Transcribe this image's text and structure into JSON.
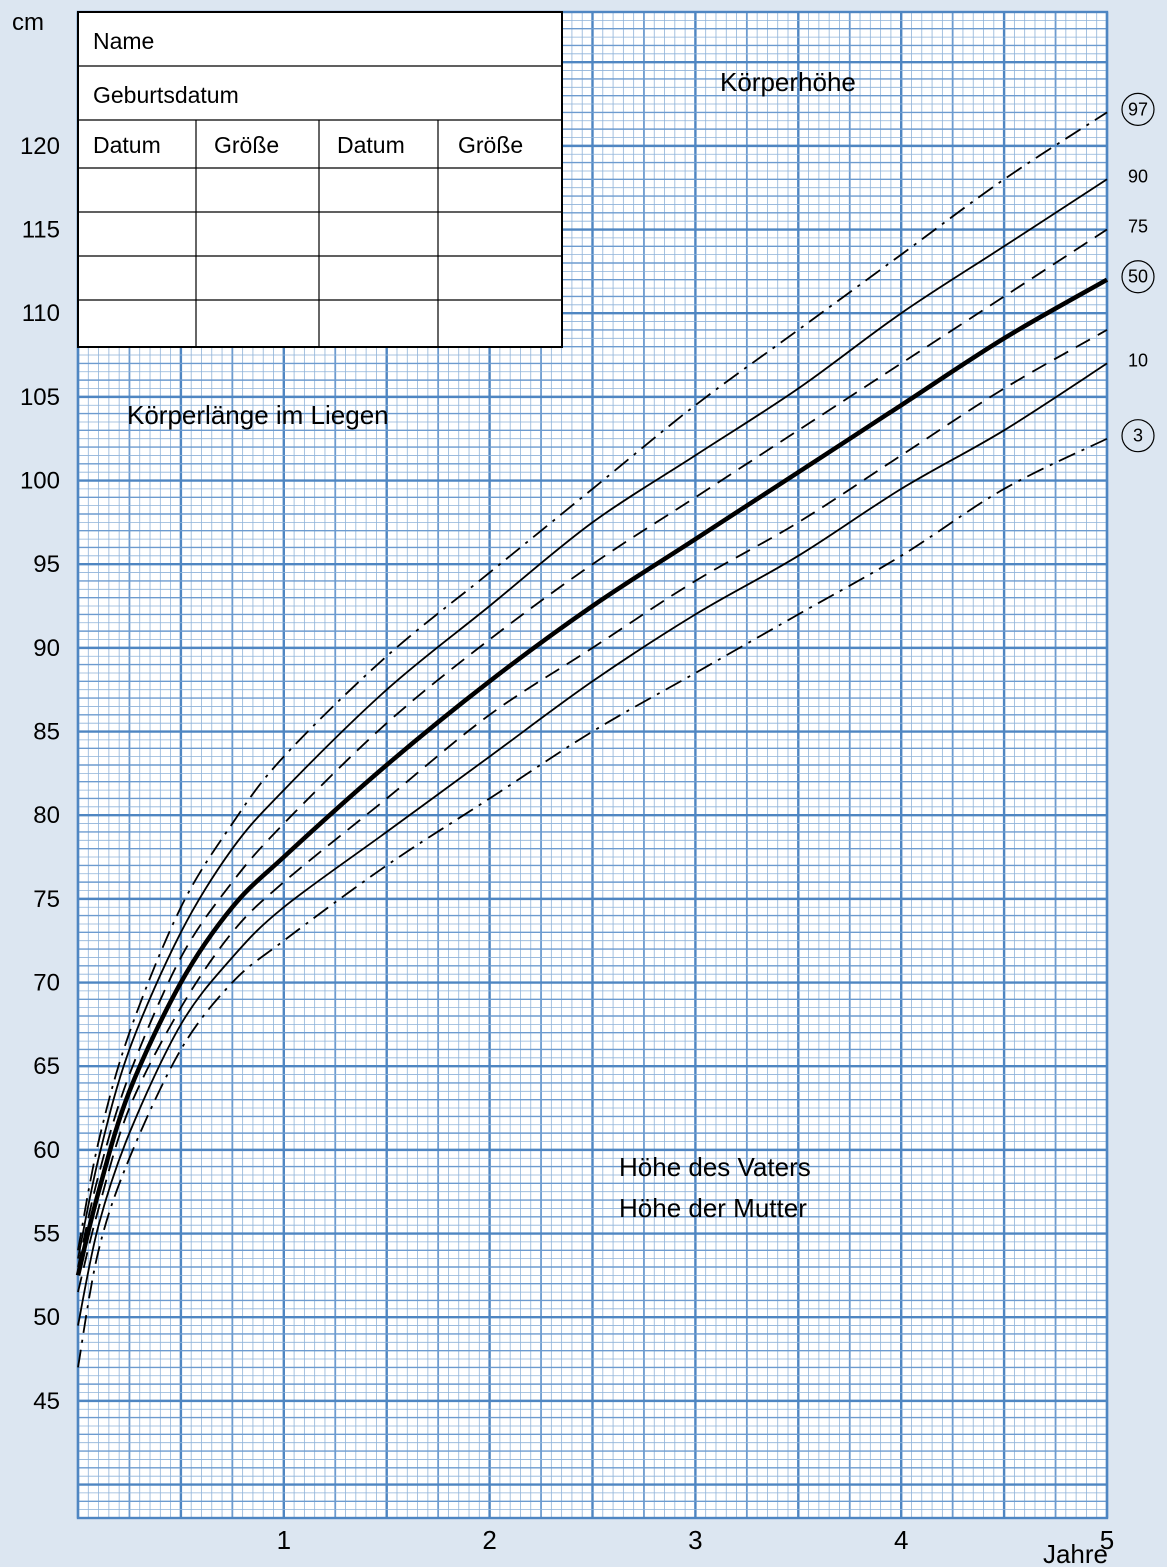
{
  "chart_data": {
    "type": "line",
    "ylabel": "cm",
    "xlabel": "Jahre",
    "xlim": [
      0,
      5
    ],
    "ylim": [
      38,
      128
    ],
    "y_ticks": [
      45,
      50,
      55,
      60,
      65,
      70,
      75,
      80,
      85,
      90,
      95,
      100,
      105,
      110,
      115,
      120
    ],
    "x_ticks": [
      1,
      2,
      3,
      4,
      5
    ],
    "grid": true,
    "annotations": {
      "top_right": "Körperhöhe",
      "left": "Körperlänge im Liegen",
      "father": "Höhe des Vaters",
      "mother": "Höhe der Mutter"
    },
    "x": [
      0,
      0.1,
      0.25,
      0.5,
      0.75,
      1,
      1.5,
      2,
      2.5,
      3,
      3.5,
      4,
      4.5,
      5
    ],
    "series": [
      {
        "name": "97",
        "circled": true,
        "style": "dashdot",
        "values": [
          54.0,
          60.5,
          67.0,
          74.5,
          79.5,
          83.5,
          89.5,
          94.5,
          99.5,
          104.5,
          109.0,
          113.5,
          118.0,
          122.0
        ]
      },
      {
        "name": "90",
        "circled": false,
        "style": "solid",
        "values": [
          53.5,
          59.5,
          66.0,
          73.0,
          78.0,
          81.5,
          87.5,
          92.5,
          97.5,
          101.5,
          105.5,
          110.0,
          114.0,
          118.0
        ]
      },
      {
        "name": "75",
        "circled": false,
        "style": "dashed",
        "values": [
          53.0,
          58.5,
          64.5,
          71.5,
          76.0,
          79.5,
          85.5,
          90.5,
          95.0,
          99.0,
          103.0,
          107.0,
          111.0,
          115.0
        ]
      },
      {
        "name": "50",
        "circled": true,
        "style": "bold",
        "values": [
          52.5,
          57.5,
          63.5,
          70.0,
          74.5,
          77.5,
          83.0,
          88.0,
          92.5,
          96.5,
          100.5,
          104.5,
          108.5,
          112.0
        ]
      },
      {
        "name": "",
        "circled": false,
        "style": "dashed",
        "values": [
          51.5,
          56.5,
          62.5,
          68.5,
          73.0,
          76.0,
          81.0,
          86.0,
          90.0,
          94.0,
          97.5,
          101.5,
          105.5,
          109.0
        ]
      },
      {
        "name": "10",
        "circled": false,
        "style": "solid",
        "values": [
          49.5,
          55.5,
          61.0,
          67.5,
          71.5,
          74.5,
          79.0,
          83.5,
          88.0,
          92.0,
          95.5,
          99.5,
          103.0,
          107.0
        ]
      },
      {
        "name": "3",
        "circled": true,
        "style": "dashdot",
        "values": [
          47.0,
          54.0,
          59.5,
          66.0,
          70.0,
          72.5,
          77.0,
          81.0,
          85.0,
          88.5,
          92.0,
          95.5,
          99.5,
          102.5
        ]
      }
    ]
  },
  "form": {
    "name_label": "Name",
    "birthdate_label": "Geburtsdatum",
    "columns": [
      "Datum",
      "Größe",
      "Datum",
      "Größe"
    ],
    "rows": [
      [
        "",
        "",
        "",
        ""
      ],
      [
        "",
        "",
        "",
        ""
      ],
      [
        "",
        "",
        "",
        ""
      ],
      [
        "",
        "",
        "",
        ""
      ]
    ]
  }
}
